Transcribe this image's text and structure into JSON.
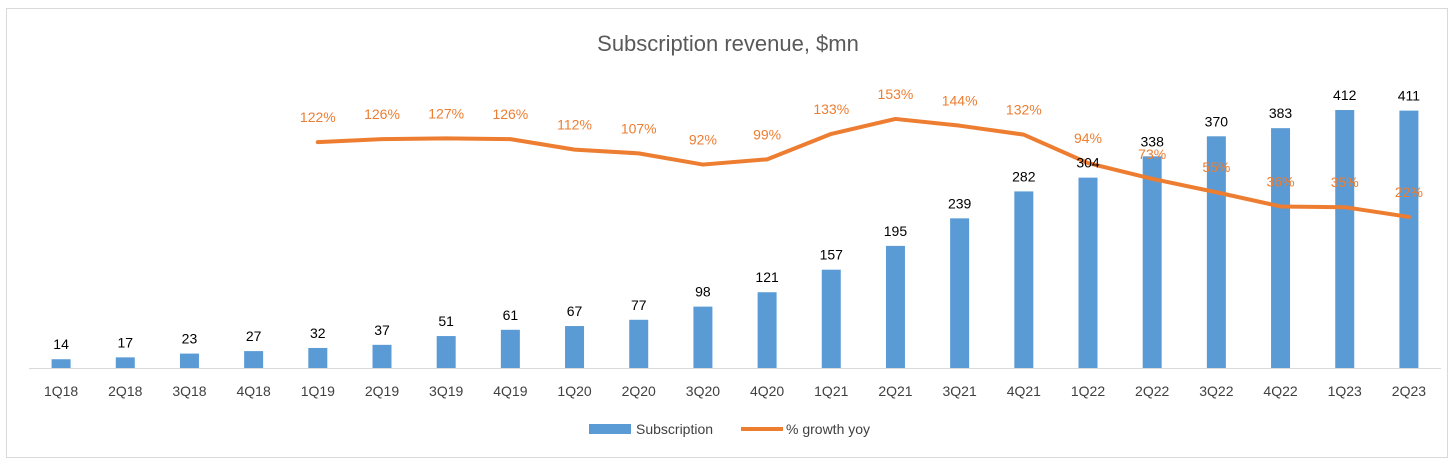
{
  "chart_data": {
    "type": "bar",
    "title": "Subscription revenue, $mn",
    "xlabel": "",
    "ylabel": "",
    "categories": [
      "1Q18",
      "2Q18",
      "3Q18",
      "4Q18",
      "1Q19",
      "2Q19",
      "3Q19",
      "4Q19",
      "1Q20",
      "2Q20",
      "3Q20",
      "4Q20",
      "1Q21",
      "2Q21",
      "3Q21",
      "4Q21",
      "1Q22",
      "2Q22",
      "3Q22",
      "4Q22",
      "1Q23",
      "2Q23"
    ],
    "series": [
      {
        "name": "Subscription",
        "type": "bar",
        "color": "#5B9BD5",
        "values": [
          14,
          17,
          23,
          27,
          32,
          37,
          51,
          61,
          67,
          77,
          98,
          121,
          157,
          195,
          239,
          282,
          304,
          338,
          370,
          383,
          412,
          411
        ]
      },
      {
        "name": "% growth yoy",
        "type": "line",
        "color": "#ED7D31",
        "values": [
          null,
          null,
          null,
          null,
          122,
          126,
          127,
          126,
          112,
          107,
          92,
          99,
          133,
          153,
          144,
          132,
          94,
          73,
          55,
          36,
          35,
          22
        ],
        "labels": [
          null,
          null,
          null,
          null,
          "122%",
          "126%",
          "127%",
          "126%",
          "112%",
          "107%",
          "92%",
          "99%",
          "133%",
          "153%",
          "144%",
          "132%",
          "94%",
          "73%",
          "55%",
          "36%",
          "35%",
          "22%"
        ]
      }
    ],
    "bar_ylim": [
      0,
      420
    ],
    "line_ylim": [
      -180,
      300
    ],
    "grid": false,
    "legend": "bottom"
  }
}
